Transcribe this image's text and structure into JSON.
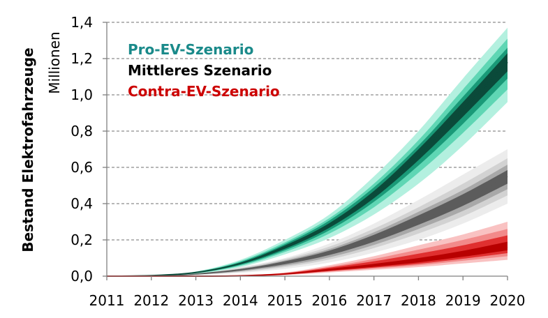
{
  "chart_data": {
    "type": "area",
    "title": "",
    "ylabel": "Bestand Elektrofahrzeuge",
    "yunit": "Millionen",
    "x": [
      "2011",
      "2012",
      "2013",
      "2014",
      "2015",
      "2016",
      "2017",
      "2018",
      "2019",
      "2020"
    ],
    "ylim": [
      0,
      1.4
    ],
    "yticks": [
      "0,0",
      "0,2",
      "0,4",
      "0,6",
      "0,8",
      "1,0",
      "1,2",
      "1,4"
    ],
    "grid": "horizontal-dashed",
    "legend_position": "top-left",
    "series": [
      {
        "name": "Pro-EV-Szenario",
        "label_color": "#1a8a8a",
        "band_colors": [
          "#b3f0df",
          "#5fd6b4",
          "#1a9a78",
          "#0b4a3a"
        ],
        "median": [
          0,
          0.003,
          0.02,
          0.07,
          0.16,
          0.28,
          0.45,
          0.67,
          0.92,
          1.18
        ],
        "bands": [
          {
            "lower": [
              0,
              0.002,
              0.014,
              0.05,
              0.12,
              0.21,
              0.34,
              0.51,
              0.72,
              0.96
            ],
            "upper": [
              0,
              0.004,
              0.026,
              0.09,
              0.2,
              0.34,
              0.55,
              0.8,
              1.09,
              1.37
            ]
          },
          {
            "lower": [
              0,
              0.0025,
              0.016,
              0.057,
              0.133,
              0.235,
              0.38,
              0.57,
              0.79,
              1.03
            ],
            "upper": [
              0,
              0.0035,
              0.024,
              0.083,
              0.186,
              0.32,
              0.51,
              0.75,
              1.03,
              1.31
            ]
          },
          {
            "lower": [
              0,
              0.0027,
              0.017,
              0.062,
              0.143,
              0.253,
              0.41,
              0.61,
              0.84,
              1.09
            ],
            "upper": [
              0,
              0.0033,
              0.023,
              0.078,
              0.177,
              0.307,
              0.49,
              0.72,
              0.99,
              1.26
            ]
          },
          {
            "lower": [
              0,
              0.0029,
              0.0185,
              0.066,
              0.151,
              0.267,
              0.43,
              0.64,
              0.88,
              1.13
            ],
            "upper": [
              0,
              0.0031,
              0.0215,
              0.074,
              0.169,
              0.293,
              0.47,
              0.7,
              0.96,
              1.23
            ]
          }
        ]
      },
      {
        "name": "Mittleres Szenario",
        "label_color": "#000000",
        "band_colors": [
          "#ececec",
          "#d2d2d2",
          "#a8a8a8",
          "#5c5c5c"
        ],
        "median": [
          0,
          0.002,
          0.012,
          0.035,
          0.075,
          0.13,
          0.21,
          0.31,
          0.42,
          0.55
        ],
        "bands": [
          {
            "lower": [
              0,
              0.001,
              0.006,
              0.018,
              0.04,
              0.075,
              0.13,
              0.2,
              0.29,
              0.4
            ],
            "upper": [
              0,
              0.003,
              0.018,
              0.05,
              0.1,
              0.18,
              0.29,
              0.42,
              0.56,
              0.7
            ]
          },
          {
            "lower": [
              0,
              0.0013,
              0.008,
              0.023,
              0.05,
              0.092,
              0.155,
              0.235,
              0.33,
              0.445
            ],
            "upper": [
              0,
              0.0027,
              0.016,
              0.045,
              0.094,
              0.163,
              0.262,
              0.38,
              0.51,
              0.65
            ]
          },
          {
            "lower": [
              0,
              0.0016,
              0.0095,
              0.027,
              0.058,
              0.104,
              0.172,
              0.26,
              0.36,
              0.48
            ],
            "upper": [
              0,
              0.0024,
              0.0145,
              0.041,
              0.087,
              0.15,
              0.242,
              0.355,
              0.475,
              0.615
            ]
          },
          {
            "lower": [
              0,
              0.0018,
              0.0105,
              0.031,
              0.066,
              0.117,
              0.19,
              0.283,
              0.388,
              0.51
            ],
            "upper": [
              0,
              0.0022,
              0.0135,
              0.039,
              0.082,
              0.141,
              0.228,
              0.335,
              0.452,
              0.585
            ]
          }
        ]
      },
      {
        "name": "Contra-EV-Szenario",
        "label_color": "#cc0000",
        "band_colors": [
          "#f9c2c2",
          "#f28a8a",
          "#e03030",
          "#b80000"
        ],
        "median": [
          0,
          0,
          0,
          0.002,
          0.012,
          0.035,
          0.058,
          0.085,
          0.12,
          0.16
        ],
        "bands": [
          {
            "lower": [
              0,
              0,
              0,
              0.001,
              0.006,
              0.02,
              0.035,
              0.05,
              0.07,
              0.09
            ],
            "upper": [
              0,
              0,
              0.001,
              0.005,
              0.02,
              0.06,
              0.11,
              0.17,
              0.23,
              0.3
            ]
          },
          {
            "lower": [
              0,
              0,
              0,
              0.0013,
              0.008,
              0.025,
              0.042,
              0.06,
              0.085,
              0.11
            ],
            "upper": [
              0,
              0,
              0.0008,
              0.0042,
              0.018,
              0.052,
              0.095,
              0.146,
              0.2,
              0.26
            ]
          },
          {
            "lower": [
              0,
              0,
              0,
              0.0015,
              0.009,
              0.028,
              0.047,
              0.068,
              0.096,
              0.127
            ],
            "upper": [
              0,
              0,
              0.0006,
              0.0035,
              0.016,
              0.047,
              0.082,
              0.124,
              0.17,
              0.225
            ]
          },
          {
            "lower": [
              0,
              0,
              0,
              0.0017,
              0.0105,
              0.031,
              0.052,
              0.076,
              0.107,
              0.143
            ],
            "upper": [
              0,
              0,
              0.0004,
              0.0028,
              0.0145,
              0.041,
              0.068,
              0.1,
              0.14,
              0.19
            ]
          }
        ]
      }
    ]
  }
}
